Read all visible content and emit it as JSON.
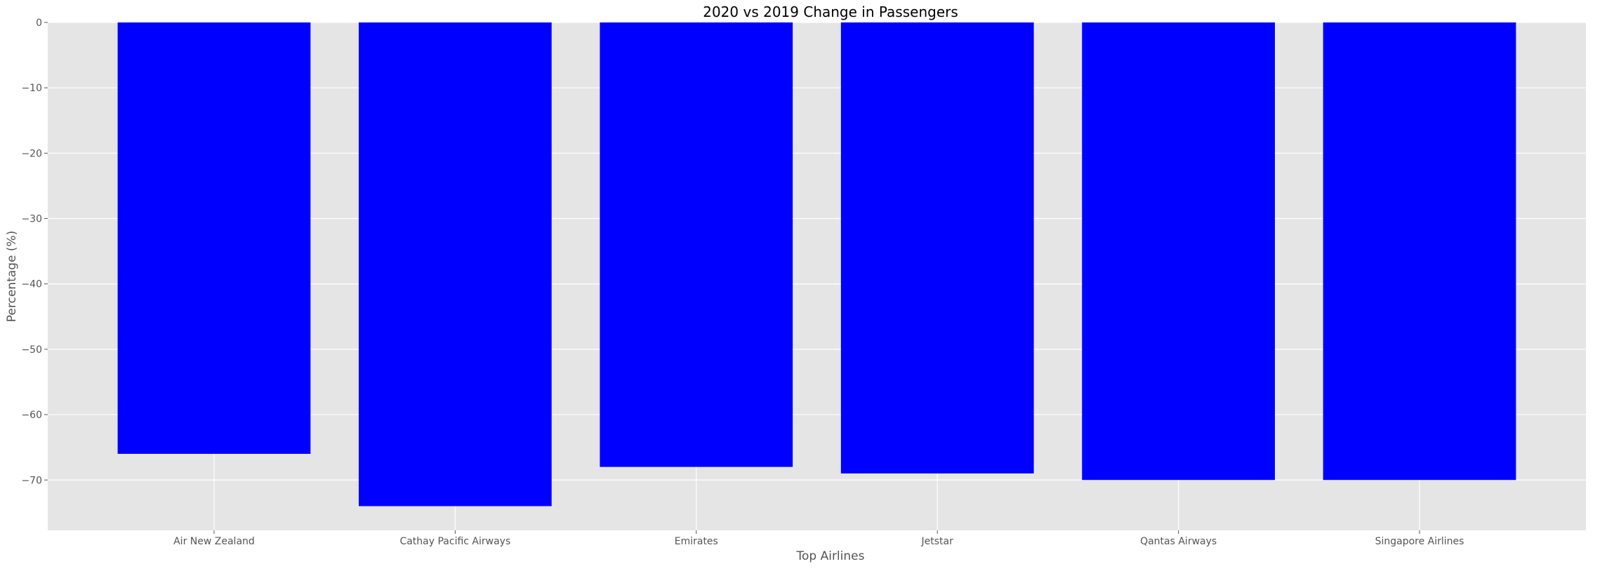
{
  "chart_data": {
    "type": "bar",
    "title": "2020 vs 2019 Change in Passengers",
    "xlabel": "Top Airlines",
    "ylabel": "Percentage (%)",
    "categories": [
      "Air New Zealand",
      "Cathay Pacific Airways",
      "Emirates",
      "Jetstar",
      "Qantas Airways",
      "Singapore Airlines"
    ],
    "values": [
      -66,
      -74,
      -68,
      -69,
      -70,
      -70
    ],
    "ylim": [
      -77.7,
      0
    ],
    "yticks": [
      0,
      -10,
      -20,
      -30,
      -40,
      -50,
      -60,
      -70
    ],
    "ytick_labels": [
      "0",
      "−10",
      "−20",
      "−30",
      "−40",
      "−50",
      "−60",
      "−70"
    ],
    "grid": true,
    "colors": {
      "bar": "#0000ff",
      "plot_background": "#e5e5e5",
      "grid": "#ffffff",
      "text": "#555555",
      "title": "#000000"
    }
  }
}
